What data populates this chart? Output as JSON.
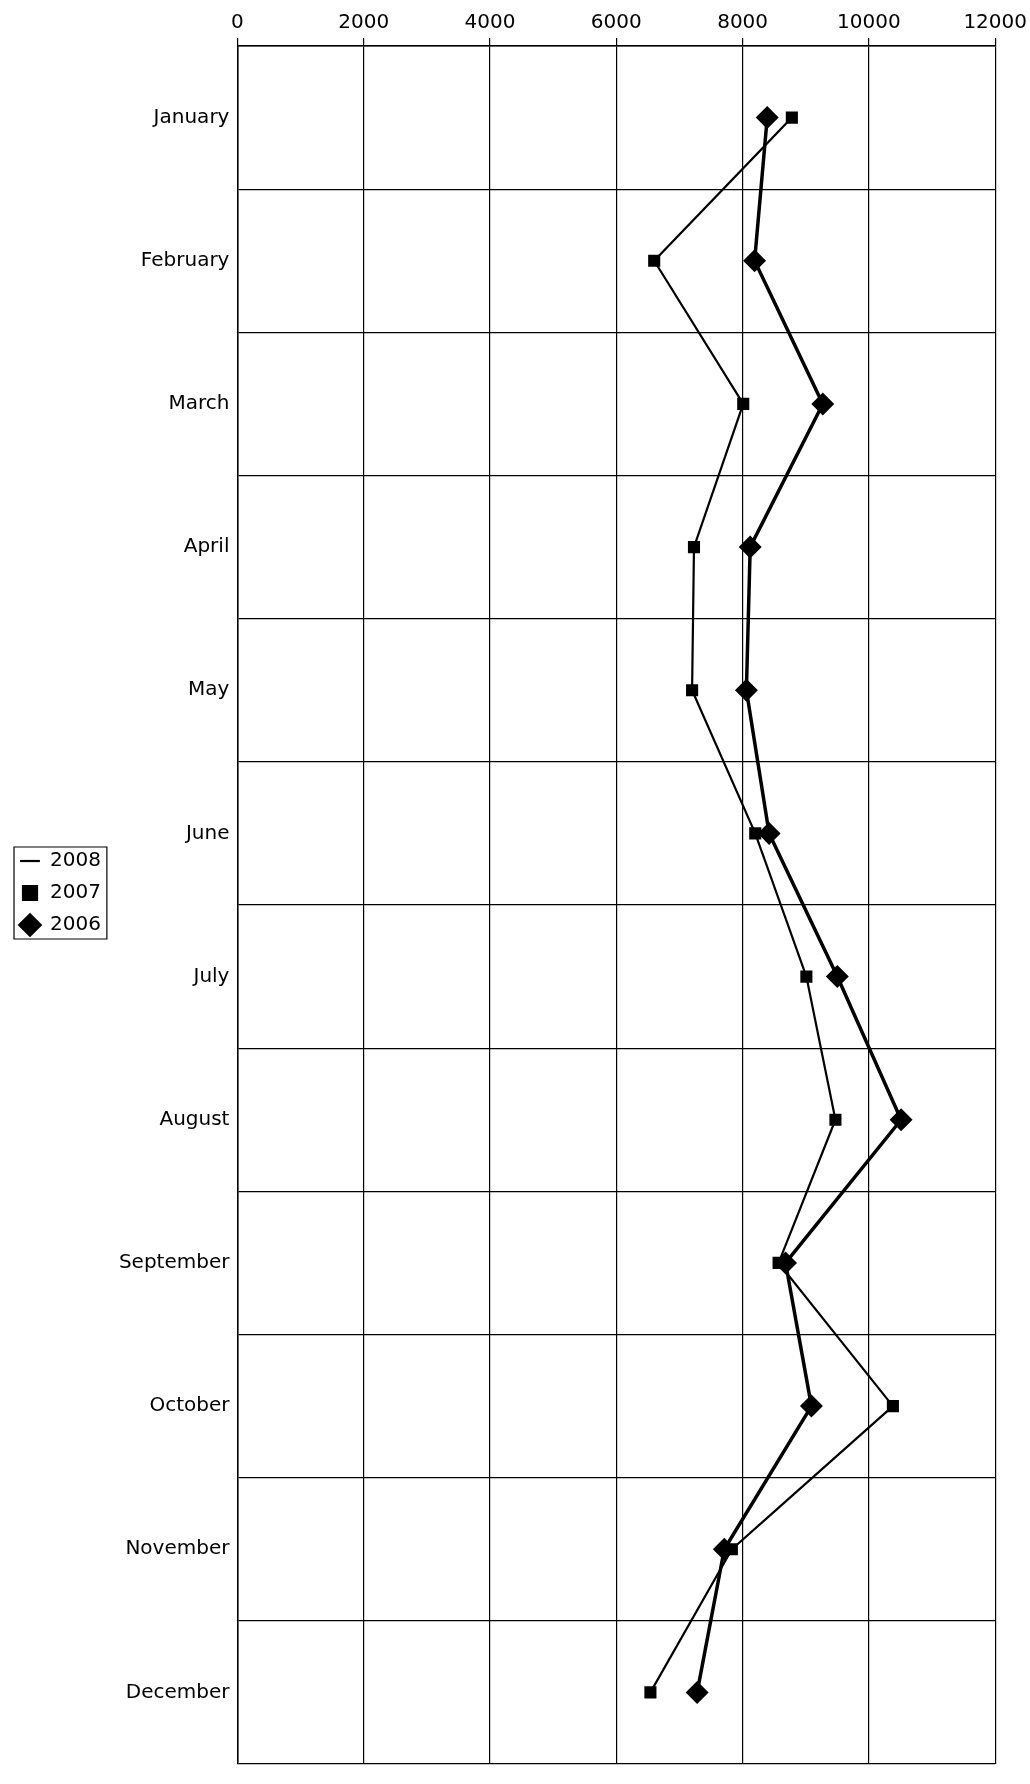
{
  "chart_data": {
    "type": "line",
    "orientation": "horizontal",
    "categories": [
      "January",
      "February",
      "March",
      "April",
      "May",
      "June",
      "July",
      "August",
      "September",
      "October",
      "November",
      "December"
    ],
    "series": [
      {
        "name": "2006",
        "color": "#000000",
        "marker": "diamond",
        "line_style": "solid",
        "values": [
          8390,
          8190,
          9270,
          8120,
          8060,
          8420,
          9500,
          10510,
          8680,
          9090,
          7710,
          7280
        ]
      },
      {
        "name": "2007",
        "color": "#000000",
        "marker": "square",
        "line_style": "solid",
        "values": [
          8780,
          6600,
          8010,
          7230,
          7200,
          8200,
          9010,
          9470,
          8570,
          10380,
          7830,
          6540
        ]
      },
      {
        "name": "2008",
        "color": "#000000",
        "marker": "none",
        "line_style": "dotted",
        "values": [
          null,
          null,
          null,
          null,
          null,
          null,
          null,
          null,
          null,
          null,
          null,
          null
        ]
      }
    ],
    "xlim": [
      0,
      12000
    ],
    "xticks": [
      0,
      2000,
      4000,
      6000,
      8000,
      10000,
      12000
    ],
    "grid": true,
    "legend": "left"
  }
}
